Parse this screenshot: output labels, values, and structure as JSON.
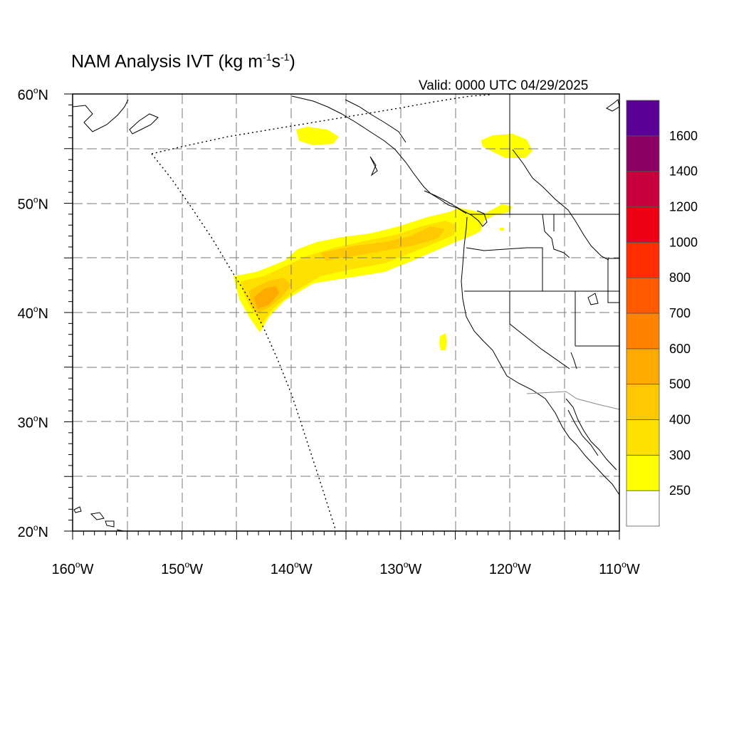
{
  "title": {
    "main": "NAM Analysis IVT (kg m",
    "exp1": "-1",
    "mid": "s",
    "exp2": "-1",
    "close": ")"
  },
  "valid_label": "Valid: 0000 UTC 04/29/2025",
  "map": {
    "lon_range": [
      -160,
      -110
    ],
    "lat_range": [
      20,
      60
    ],
    "grid": true,
    "grid_step_deg": 5,
    "x_ticks": [
      {
        "lon": -160,
        "label": "160",
        "suffix": "W"
      },
      {
        "lon": -150,
        "label": "150",
        "suffix": "W"
      },
      {
        "lon": -140,
        "label": "140",
        "suffix": "W"
      },
      {
        "lon": -130,
        "label": "130",
        "suffix": "W"
      },
      {
        "lon": -120,
        "label": "120",
        "suffix": "W"
      },
      {
        "lon": -110,
        "label": "110",
        "suffix": "W"
      }
    ],
    "y_ticks": [
      {
        "lat": 60,
        "label": "60",
        "suffix": "N"
      },
      {
        "lat": 50,
        "label": "50",
        "suffix": "N"
      },
      {
        "lat": 40,
        "label": "40",
        "suffix": "N"
      },
      {
        "lat": 30,
        "label": "30",
        "suffix": "N"
      },
      {
        "lat": 20,
        "label": "20",
        "suffix": "N"
      }
    ]
  },
  "colorbar": {
    "levels": [
      "250",
      "300",
      "400",
      "500",
      "600",
      "700",
      "800",
      "1000",
      "1200",
      "1400",
      "1600"
    ],
    "colors": [
      "#ffffff",
      "#ffff00",
      "#ffe100",
      "#ffc800",
      "#ffaa00",
      "#ff8200",
      "#ff5a00",
      "#ff2d00",
      "#ee0014",
      "#c8003c",
      "#8c0064",
      "#5a0096"
    ]
  },
  "colors": {
    "ivt_250": "#ffff00",
    "ivt_300": "#ffe100",
    "ivt_400": "#ffc800",
    "ivt_500": "#ffaa00",
    "ivt_600": "#ff8200"
  }
}
